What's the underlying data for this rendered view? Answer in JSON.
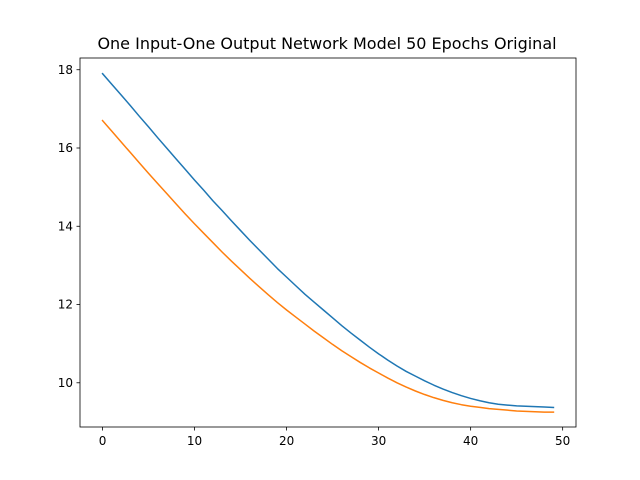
{
  "chart_data": {
    "type": "line",
    "title": "One Input-One Output Network Model 50 Epochs Original",
    "xlabel": "",
    "ylabel": "",
    "xlim": [
      -2.45,
      51.45
    ],
    "ylim": [
      8.87,
      18.3
    ],
    "xticks": [
      0,
      10,
      20,
      30,
      40,
      50
    ],
    "yticks": [
      10,
      12,
      14,
      16,
      18
    ],
    "grid": false,
    "series": [
      {
        "color": "#1f77b4",
        "x": [
          0,
          1,
          2,
          3,
          4,
          5,
          6,
          7,
          8,
          9,
          10,
          11,
          12,
          13,
          14,
          15,
          16,
          17,
          18,
          19,
          20,
          21,
          22,
          23,
          24,
          25,
          26,
          27,
          28,
          29,
          30,
          31,
          32,
          33,
          34,
          35,
          36,
          37,
          38,
          39,
          40,
          41,
          42,
          43,
          44,
          45,
          46,
          47,
          48,
          49
        ],
        "values": [
          17.9,
          17.63,
          17.36,
          17.09,
          16.81,
          16.54,
          16.26,
          15.99,
          15.72,
          15.45,
          15.18,
          14.92,
          14.65,
          14.4,
          14.14,
          13.89,
          13.64,
          13.4,
          13.16,
          12.92,
          12.7,
          12.48,
          12.26,
          12.06,
          11.86,
          11.66,
          11.46,
          11.27,
          11.09,
          10.91,
          10.74,
          10.58,
          10.43,
          10.29,
          10.17,
          10.05,
          9.94,
          9.84,
          9.75,
          9.67,
          9.6,
          9.54,
          9.49,
          9.45,
          9.43,
          9.41,
          9.4,
          9.39,
          9.38,
          9.37
        ]
      },
      {
        "color": "#ff7f0e",
        "x": [
          0,
          1,
          2,
          3,
          4,
          5,
          6,
          7,
          8,
          9,
          10,
          11,
          12,
          13,
          14,
          15,
          16,
          17,
          18,
          19,
          20,
          21,
          22,
          23,
          24,
          25,
          26,
          27,
          28,
          29,
          30,
          31,
          32,
          33,
          34,
          35,
          36,
          37,
          38,
          39,
          40,
          41,
          42,
          43,
          44,
          45,
          46,
          47,
          48,
          49
        ],
        "values": [
          16.7,
          16.43,
          16.16,
          15.89,
          15.62,
          15.35,
          15.09,
          14.83,
          14.57,
          14.31,
          14.06,
          13.82,
          13.58,
          13.34,
          13.11,
          12.89,
          12.67,
          12.46,
          12.25,
          12.05,
          11.86,
          11.68,
          11.5,
          11.32,
          11.15,
          10.98,
          10.82,
          10.67,
          10.52,
          10.38,
          10.25,
          10.12,
          10.0,
          9.89,
          9.79,
          9.7,
          9.62,
          9.55,
          9.49,
          9.44,
          9.4,
          9.37,
          9.34,
          9.32,
          9.3,
          9.28,
          9.27,
          9.26,
          9.25,
          9.25
        ]
      }
    ]
  }
}
